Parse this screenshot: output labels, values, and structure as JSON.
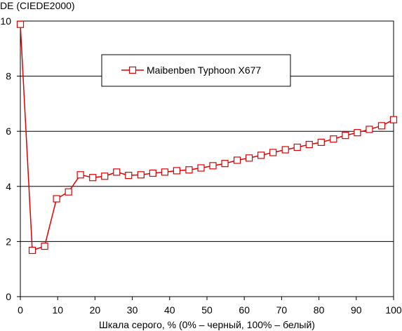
{
  "chart_data": {
    "type": "line",
    "ylabel": "DE (CIEDE2000)",
    "xlabel": "Шкала серого, % (0% – черный, 100% – белый)",
    "xlim": [
      0,
      100
    ],
    "ylim": [
      0,
      10
    ],
    "xticks": [
      0,
      10,
      20,
      30,
      40,
      50,
      60,
      70,
      80,
      90,
      100
    ],
    "yticks": [
      0,
      2,
      4,
      6,
      8,
      10
    ],
    "xtick_labels": [
      "0",
      "10",
      "20",
      "30",
      "40",
      "50",
      "60",
      "70",
      "80",
      "90",
      "100"
    ],
    "ytick_labels": [
      "0",
      "2",
      "4",
      "6",
      "8",
      "10"
    ],
    "grid": "horizontal",
    "legend_position": "top-center",
    "series": [
      {
        "name": "Maibenben Typhoon X677",
        "color": "#dd0000",
        "marker": "square-open",
        "x": [
          0,
          3.2,
          6.5,
          9.7,
          12.9,
          16.1,
          19.4,
          22.6,
          25.8,
          29,
          32.3,
          35.5,
          38.7,
          41.9,
          45.2,
          48.4,
          51.6,
          54.8,
          58.1,
          61.3,
          64.5,
          67.7,
          71,
          74.2,
          77.4,
          80.6,
          83.9,
          87.1,
          90.3,
          93.5,
          96.8,
          100
        ],
        "y": [
          9.88,
          1.68,
          1.83,
          3.55,
          3.8,
          4.42,
          4.32,
          4.37,
          4.52,
          4.4,
          4.42,
          4.48,
          4.52,
          4.57,
          4.6,
          4.67,
          4.75,
          4.83,
          4.95,
          5.03,
          5.13,
          5.23,
          5.33,
          5.42,
          5.52,
          5.6,
          5.72,
          5.85,
          5.95,
          6.07,
          6.2,
          6.42
        ]
      }
    ]
  }
}
